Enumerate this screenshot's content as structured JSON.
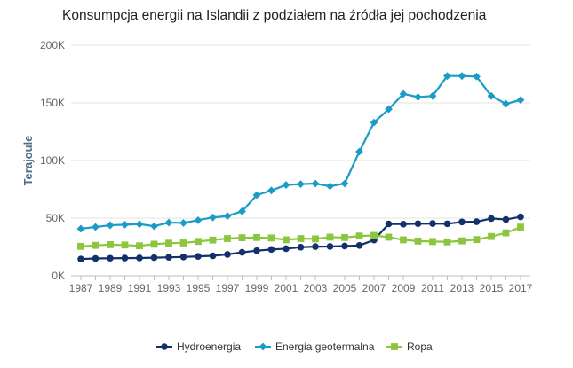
{
  "chart_data": {
    "type": "line",
    "title": "Konsumpcja energii na Islandii z podziałem na źródła jej pochodzenia",
    "xlabel": "",
    "ylabel": "Terajoule",
    "ylim": [
      0,
      200000
    ],
    "yticks": [
      0,
      50000,
      100000,
      150000,
      200000
    ],
    "ytick_labels": [
      "0K",
      "50K",
      "100K",
      "150K",
      "200K"
    ],
    "x": [
      1987,
      1988,
      1989,
      1990,
      1991,
      1992,
      1993,
      1994,
      1995,
      1996,
      1997,
      1998,
      1999,
      2000,
      2001,
      2002,
      2003,
      2004,
      2005,
      2006,
      2007,
      2008,
      2009,
      2010,
      2011,
      2012,
      2013,
      2014,
      2015,
      2016,
      2017
    ],
    "xtick_labels": [
      "1987",
      "1989",
      "1991",
      "1993",
      "1995",
      "1997",
      "1999",
      "2001",
      "2003",
      "2005",
      "2007",
      "2009",
      "2011",
      "2013",
      "2015",
      "2017"
    ],
    "legend_position": "bottom",
    "series": [
      {
        "name": "Hydroenergia",
        "color": "#13306b",
        "marker": "circle",
        "values": [
          14500,
          15000,
          15200,
          15300,
          15400,
          15700,
          16000,
          16300,
          16800,
          17300,
          18500,
          20300,
          21800,
          22800,
          23500,
          24800,
          25300,
          25400,
          25800,
          26300,
          31000,
          45000,
          44800,
          45200,
          45300,
          45100,
          46700,
          46900,
          49700,
          48800,
          51100
        ]
      },
      {
        "name": "Energia geotermalna",
        "color": "#1a9cc6",
        "marker": "diamond",
        "values": [
          40800,
          42300,
          43800,
          44300,
          44800,
          43000,
          46100,
          45800,
          48200,
          50600,
          51800,
          55900,
          70000,
          74000,
          78800,
          79500,
          80000,
          77700,
          80000,
          107700,
          133000,
          144500,
          157800,
          155000,
          156000,
          173300,
          173300,
          172800,
          156000,
          149200,
          152500
        ]
      },
      {
        "name": "Ropa",
        "color": "#8cc63f",
        "marker": "square",
        "values": [
          25500,
          26400,
          27000,
          26700,
          26000,
          27400,
          28300,
          28500,
          29800,
          31000,
          32300,
          33000,
          33200,
          32800,
          31200,
          32300,
          32000,
          33500,
          33200,
          34500,
          35000,
          33500,
          31200,
          30100,
          29700,
          29400,
          30300,
          31400,
          34100,
          37200,
          42200
        ]
      }
    ]
  }
}
